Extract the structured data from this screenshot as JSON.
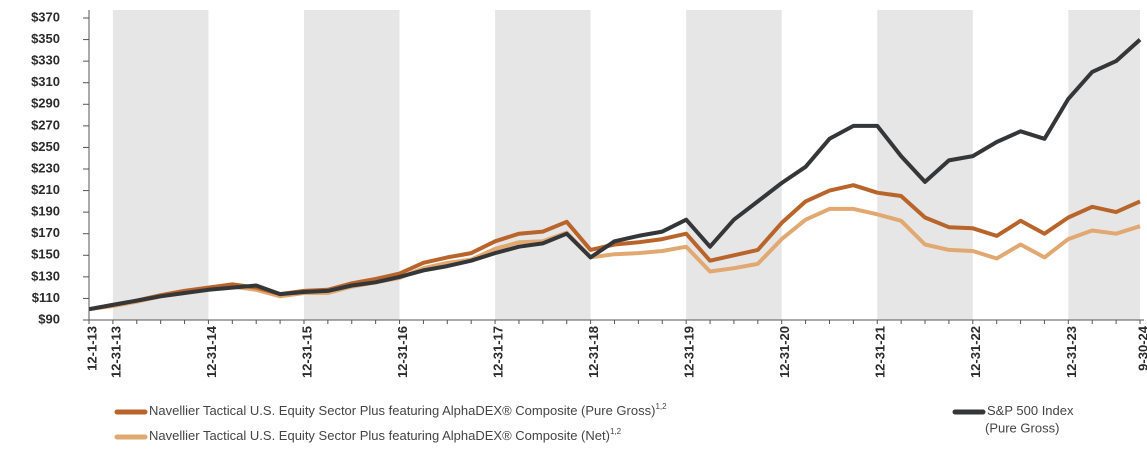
{
  "chart_data": {
    "type": "line",
    "categories": [
      "12-1-13",
      "12-31-13",
      null,
      null,
      null,
      "12-31-14",
      null,
      null,
      null,
      "12-31-15",
      null,
      null,
      null,
      "12-31-16",
      null,
      null,
      null,
      "12-31-17",
      null,
      null,
      null,
      "12-31-18",
      null,
      null,
      null,
      "12-31-19",
      null,
      null,
      null,
      "12-31-20",
      null,
      null,
      null,
      "12-31-21",
      null,
      null,
      null,
      "12-31-22",
      null,
      null,
      null,
      "12-31-23",
      null,
      null,
      "9-30-24"
    ],
    "series": [
      {
        "name": "Navellier Tactical U.S. Equity Sector Plus featuring AlphaDEX® Composite (Pure Gross)",
        "footnote": "1,2",
        "color": "#b8642a",
        "values": [
          100,
          104,
          108,
          113,
          117,
          120,
          123,
          120,
          114,
          117,
          118,
          124,
          128,
          133,
          143,
          148,
          152,
          163,
          170,
          172,
          181,
          155,
          160,
          162,
          165,
          170,
          145,
          150,
          155,
          180,
          200,
          210,
          215,
          208,
          205,
          185,
          176,
          175,
          168,
          182,
          170,
          185,
          195,
          190,
          200
        ]
      },
      {
        "name": "Navellier Tactical U.S. Equity Sector Plus featuring AlphaDEX® Composite (Net)",
        "footnote": "1,2",
        "color": "#e2a871",
        "values": [
          100,
          103,
          107,
          112,
          115,
          118,
          121,
          118,
          112,
          115,
          115,
          121,
          125,
          129,
          138,
          143,
          146,
          156,
          162,
          163,
          171,
          148,
          151,
          152,
          154,
          158,
          135,
          138,
          142,
          165,
          183,
          193,
          193,
          188,
          182,
          160,
          155,
          154,
          147,
          160,
          148,
          165,
          173,
          170,
          177
        ]
      },
      {
        "name": "S&P 500 Index",
        "name_note": "(Pure Gross)",
        "color": "#343638",
        "values": [
          100,
          104,
          108,
          112,
          115,
          118,
          120,
          122,
          114,
          116,
          117,
          122,
          125,
          130,
          136,
          140,
          145,
          152,
          158,
          161,
          170,
          148,
          163,
          168,
          172,
          183,
          158,
          183,
          200,
          217,
          232,
          258,
          270,
          270,
          242,
          218,
          238,
          242,
          255,
          265,
          258,
          295,
          320,
          330,
          350
        ]
      }
    ],
    "ylim": [
      90,
      370
    ],
    "yticks": [
      {
        "value": 90,
        "label": "$90"
      },
      {
        "value": 110,
        "label": "$110"
      },
      {
        "value": 130,
        "label": "$130"
      },
      {
        "value": 150,
        "label": "$150"
      },
      {
        "value": 170,
        "label": "$170"
      },
      {
        "value": 190,
        "label": "$190"
      },
      {
        "value": 210,
        "label": "$210"
      },
      {
        "value": 230,
        "label": "$230"
      },
      {
        "value": 250,
        "label": "$250"
      },
      {
        "value": 270,
        "label": "$270"
      },
      {
        "value": 290,
        "label": "$290"
      },
      {
        "value": 310,
        "label": "$310"
      },
      {
        "value": 330,
        "label": "$330"
      },
      {
        "value": 350,
        "label": "$350"
      },
      {
        "value": 370,
        "label": "$370"
      }
    ]
  }
}
